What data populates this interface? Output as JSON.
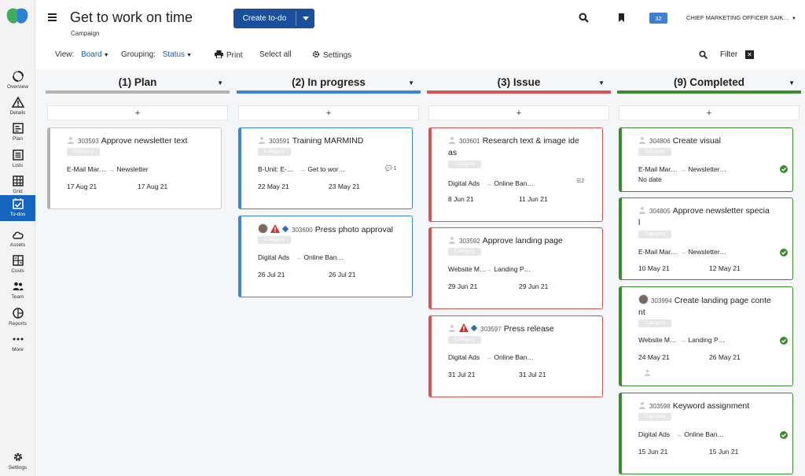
{
  "sidebar": {
    "items": [
      {
        "label": "Overview",
        "icon": "circle-arrows-icon"
      },
      {
        "label": "Details",
        "icon": "warning-triangle-icon"
      },
      {
        "label": "Plan",
        "icon": "plan-document-icon"
      },
      {
        "label": "Lists",
        "icon": "list-icon"
      },
      {
        "label": "Grid",
        "icon": "grid-icon"
      },
      {
        "label": "To-dos",
        "icon": "checkbox-calendar-icon",
        "active": true
      },
      {
        "label": "Assets",
        "icon": "cloud-icon"
      },
      {
        "label": "Costs",
        "icon": "calculator-icon"
      },
      {
        "label": "Team",
        "icon": "team-icon"
      },
      {
        "label": "Reports",
        "icon": "pie-chart-icon"
      },
      {
        "label": "More",
        "icon": "more-dots-icon"
      }
    ],
    "settings_label": "Settings"
  },
  "header": {
    "title": "Get to work on time",
    "subtitle": "Campaign",
    "create_label": "Create to-do",
    "notifications": "32",
    "user": "CHIEF MARKETING OFFICER SAIK…"
  },
  "toolbar": {
    "view_label": "View:",
    "view_value": "Board",
    "grouping_label": "Grouping:",
    "grouping_value": "Status",
    "print": "Print",
    "select_all": "Select all",
    "settings": "Settings",
    "filter": "Filter"
  },
  "colors": {
    "plan": "#b3b3b3",
    "in_progress": "#3c86d8",
    "issue": "#d9534f",
    "completed": "#3d8b2f",
    "accent": "#1a4f9c"
  },
  "columns": [
    {
      "title": "(1)  Plan",
      "add": "+",
      "cards": [
        {
          "id": "303593",
          "title": "Approve newsletter text",
          "category": "Category",
          "a": "E-Mail Mar…",
          "b": "Newsletter",
          "start": "17 Aug 21",
          "end": "17 Aug 21"
        }
      ]
    },
    {
      "title": "(2)  In progress",
      "add": "+",
      "cards": [
        {
          "id": "303591",
          "title": "Training MARMIND",
          "category": "Category",
          "a": "B-Unit: E-…",
          "b": "Get to wor…",
          "comments": "1",
          "start": "22 May 21",
          "end": "23 May 21"
        },
        {
          "id": "303600",
          "title": "Press photo approval",
          "category": "Category",
          "a": "Digital Ads",
          "b": "Online Ban…",
          "start": "26 Jul 21",
          "end": "26 Jul 21"
        }
      ]
    },
    {
      "title": "(3)  Issue",
      "add": "+",
      "cards": [
        {
          "id": "303601",
          "title_1": "Research text & image ide",
          "title_2": "as",
          "category": "Category",
          "a": "Digital Ads",
          "b": "Online Ban…",
          "subtasks": "2",
          "start": "8 Jun 21",
          "end": "11 Jun 21"
        },
        {
          "id": "303592",
          "title": "Approve landing page",
          "category": "Category",
          "a": "Website M…",
          "b": "Landing P…",
          "start": "29 Jun 21",
          "end": "29 Jun 21"
        },
        {
          "id": "303597",
          "title": "Press release",
          "category": "Category",
          "a": "Digital Ads",
          "b": "Online Ban…",
          "start": "31 Jul 21",
          "end": "31 Jul 21"
        }
      ]
    },
    {
      "title": "(9)  Completed",
      "add": "+",
      "cards": [
        {
          "id": "304806",
          "title": "Create visual",
          "category": "Category",
          "a": "E-Mail Mar…",
          "b": "Newsletter…",
          "start": "No date"
        },
        {
          "id": "304805",
          "title_1": "Approve newsletter specia",
          "title_2": "l",
          "category": "Category",
          "a": "E-Mail Mar…",
          "b": "Newsletter…",
          "start": "10 May 21",
          "end": "12 May 21"
        },
        {
          "id": "303994",
          "title_1": "Create landing page conte",
          "title_2": "nt",
          "category": "Category",
          "a": "Website M…",
          "b": "Landing P…",
          "start": "24 May 21",
          "end": "26 May 21"
        },
        {
          "id": "303598",
          "title": "Keyword assignment",
          "category": "Category",
          "a": "Digital Ads",
          "b": "Online Ban…",
          "start": "15 Jun 21",
          "end": "15 Jun 21"
        }
      ]
    }
  ]
}
